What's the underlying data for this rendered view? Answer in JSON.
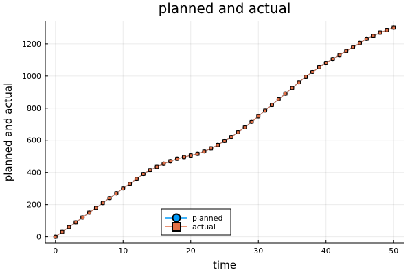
{
  "chart_data": {
    "type": "line",
    "title": "planned and actual",
    "xlabel": "time",
    "ylabel": "planned and actual",
    "xlim": [
      -1.5,
      51.5
    ],
    "ylim": [
      -40,
      1340
    ],
    "xticks": [
      0,
      10,
      20,
      30,
      40,
      50
    ],
    "yticks": [
      0,
      200,
      400,
      600,
      800,
      1000,
      1200
    ],
    "grid": true,
    "legend_position": "bottom-center",
    "x": [
      0,
      1,
      2,
      3,
      4,
      5,
      6,
      7,
      8,
      9,
      10,
      11,
      12,
      13,
      14,
      15,
      16,
      17,
      18,
      19,
      20,
      21,
      22,
      23,
      24,
      25,
      26,
      27,
      28,
      29,
      30,
      31,
      32,
      33,
      34,
      35,
      36,
      37,
      38,
      39,
      40,
      41,
      42,
      43,
      44,
      45,
      46,
      47,
      48,
      49,
      50
    ],
    "series": [
      {
        "name": "planned",
        "color": "#009af9",
        "marker": "circle",
        "values": [
          0,
          30,
          60,
          90,
          120,
          150,
          180,
          210,
          240,
          270,
          300,
          330,
          360,
          390,
          415,
          435,
          455,
          470,
          485,
          495,
          505,
          515,
          530,
          550,
          570,
          595,
          620,
          650,
          680,
          715,
          750,
          785,
          820,
          855,
          890,
          925,
          960,
          995,
          1025,
          1055,
          1080,
          1105,
          1130,
          1155,
          1180,
          1205,
          1230,
          1250,
          1270,
          1285,
          1300
        ]
      },
      {
        "name": "actual",
        "color": "#e26f46",
        "marker": "square",
        "values": [
          0,
          30,
          60,
          90,
          120,
          150,
          180,
          210,
          240,
          270,
          300,
          330,
          360,
          390,
          415,
          435,
          455,
          470,
          485,
          495,
          505,
          515,
          530,
          550,
          570,
          595,
          620,
          650,
          680,
          715,
          750,
          785,
          820,
          855,
          890,
          925,
          960,
          995,
          1025,
          1055,
          1080,
          1105,
          1130,
          1155,
          1180,
          1205,
          1230,
          1250,
          1270,
          1285,
          1300
        ]
      }
    ]
  }
}
